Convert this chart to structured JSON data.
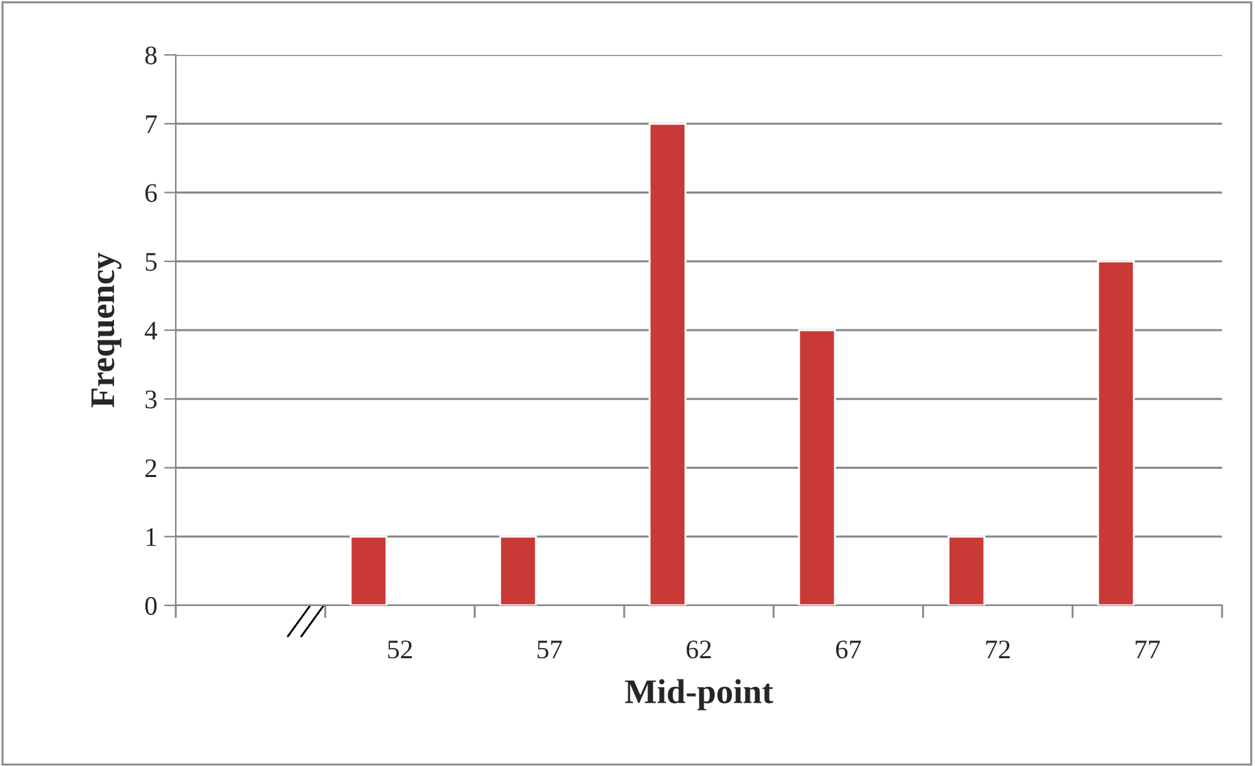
{
  "chart_data": {
    "type": "bar",
    "xlabel": "Mid-point",
    "ylabel": "Frequency",
    "categories": [
      null,
      "52",
      "57",
      "62",
      "67",
      "72",
      "77"
    ],
    "values": [
      null,
      1,
      1,
      7,
      4,
      1,
      5
    ],
    "color": "#c93a36",
    "ylim": [
      0,
      8
    ],
    "yticks": [
      0,
      1,
      2,
      3,
      4,
      5,
      6,
      7,
      8
    ],
    "grid": "y",
    "legend": false
  }
}
